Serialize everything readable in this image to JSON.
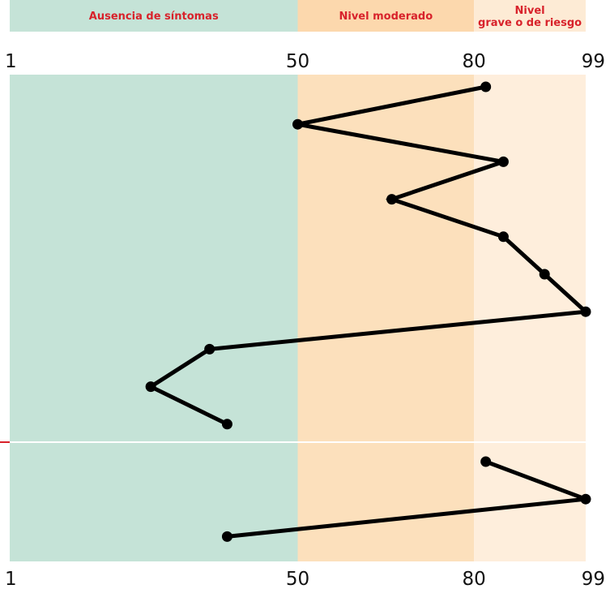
{
  "zones": [
    {
      "label": "Ausencia de síntomas",
      "from": 1,
      "to": 50,
      "header_color": "#c5e3d7",
      "bg_color": "#c5e3d7",
      "label_color": "#d8222b"
    },
    {
      "label": "Nivel moderado",
      "from": 50,
      "to": 80,
      "header_color": "#fcd8ad",
      "bg_color": "#fce0bc",
      "label_color": "#d8222b"
    },
    {
      "label": "Nivel\ngrave o de riesgo",
      "from": 80,
      "to": 99,
      "header_color": "#fdebd5",
      "bg_color": "#feeedc",
      "label_color": "#d8222b"
    }
  ],
  "chart_data": {
    "type": "line",
    "orientation": "horizontal-profile",
    "xlim": [
      1,
      99
    ],
    "x_ticks": [
      {
        "value": 1,
        "label": "1"
      },
      {
        "value": 50,
        "label": "50"
      },
      {
        "value": 80,
        "label": "80"
      },
      {
        "value": 99,
        "label": "99"
      }
    ],
    "series": [
      {
        "values": [
          82,
          50,
          85,
          66,
          85,
          92,
          99,
          35,
          25,
          38
        ]
      },
      {
        "values": [
          82,
          99,
          38
        ]
      }
    ],
    "line_color": "#000000",
    "separator_color": "#d8222b"
  }
}
